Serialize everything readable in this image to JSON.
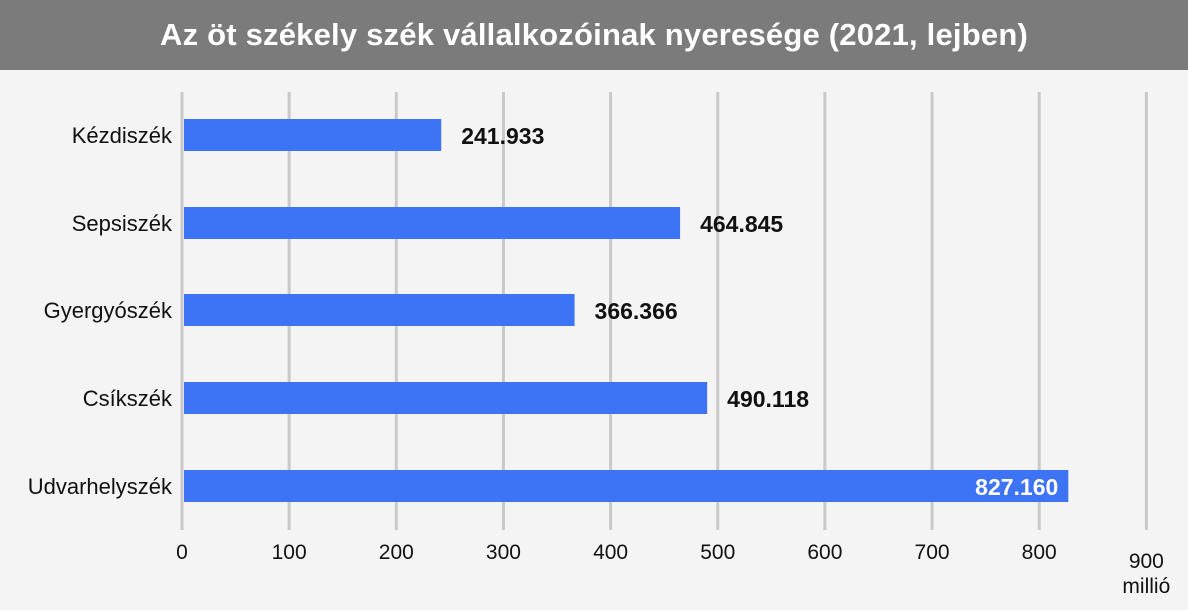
{
  "title": "Az öt székely szék vállalkozóinak nyeresége (2021, lejben)",
  "chart_data": {
    "type": "bar",
    "orientation": "horizontal",
    "title": "Az öt székely szék vállalkozóinak nyeresége (2021, lejben)",
    "categories": [
      "Kézdiszék",
      "Sepsiszék",
      "Gyergyószék",
      "Csíkszék",
      "Udvarhelyszék"
    ],
    "values": [
      241.933,
      464.845,
      366.366,
      490.118,
      827.16
    ],
    "value_labels": [
      "241.933",
      "464.845",
      "366.366",
      "490.118",
      "827.160"
    ],
    "xlim": [
      0,
      900
    ],
    "xticks": [
      "0",
      "100",
      "200",
      "300",
      "400",
      "500",
      "600",
      "700",
      "800",
      "900"
    ],
    "xunit": "millió",
    "grid": true,
    "legend": "none",
    "bar_color": "#3d74f6",
    "grid_color": "#c9c9c9",
    "label_color": "#111111",
    "inside_label_color": "#ffffff"
  }
}
